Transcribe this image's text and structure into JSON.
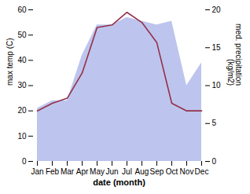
{
  "chart_data": {
    "type": "line",
    "xlabel": "date (month)",
    "ylabel": "max temp (C)",
    "y2label": "med. precipitation\n(kg/m2)",
    "categories": [
      "Jan",
      "Feb",
      "Mar",
      "Apr",
      "May",
      "Jun",
      "Jul",
      "Aug",
      "Sep",
      "Oct",
      "Nov",
      "Dec"
    ],
    "series": [
      {
        "type": "area",
        "axis": "y2",
        "color": "#bdc5ee",
        "values": [
          7,
          8,
          8,
          14,
          18,
          18,
          19,
          18.5,
          18,
          18.5,
          10,
          13
        ]
      },
      {
        "type": "line",
        "color": "#943048",
        "values": [
          20,
          23,
          25,
          35,
          53,
          54,
          59,
          55,
          47,
          23,
          20,
          20
        ]
      }
    ],
    "ylim": [
      0,
      60
    ],
    "yticks": [
      0,
      10,
      20,
      30,
      40,
      50,
      60
    ],
    "y2lim": [
      0,
      20
    ],
    "y2ticks": [
      0,
      5,
      10,
      15,
      20
    ],
    "grid": false
  }
}
